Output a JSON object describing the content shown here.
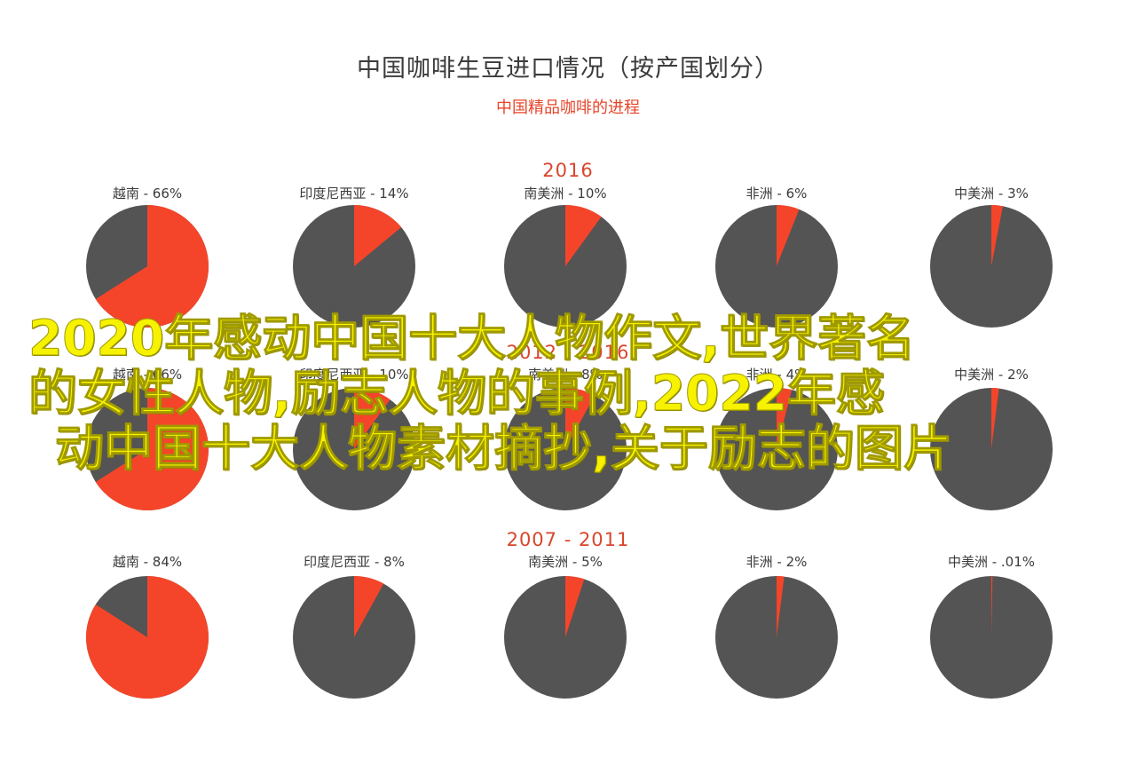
{
  "chart_data": {
    "type": "pie",
    "title": "中国咖啡生豆进口情况（按产国划分）",
    "subtitle": "中国精品咖啡的进程",
    "colors": {
      "highlight": "#f4452a",
      "rest": "#545454"
    },
    "groups": [
      {
        "period": "2016",
        "pies": [
          {
            "country": "越南",
            "label": "越南 - 66%",
            "value": 66
          },
          {
            "country": "印度尼西亚",
            "label": "印度尼西亚 - 14%",
            "value": 14
          },
          {
            "country": "南美洲",
            "label": "南美洲 - 10%",
            "value": 10
          },
          {
            "country": "非洲",
            "label": "非洲 - 6%",
            "value": 6
          },
          {
            "country": "中美洲",
            "label": "中美洲 - 3%",
            "value": 3
          }
        ]
      },
      {
        "period": "2012 - 2016",
        "pies": [
          {
            "country": "越南",
            "label": "越南 - 66%",
            "value": 66
          },
          {
            "country": "印度尼西亚",
            "label": "印度尼西亚 - 10%",
            "value": 10
          },
          {
            "country": "南美洲",
            "label": "南美洲 - 8%",
            "value": 8
          },
          {
            "country": "非洲",
            "label": "非洲 - 4%",
            "value": 4
          },
          {
            "country": "中美洲",
            "label": "中美洲 - 2%",
            "value": 2
          }
        ]
      },
      {
        "period": "2007 - 2011",
        "pies": [
          {
            "country": "越南",
            "label": "越南 - 84%",
            "value": 84
          },
          {
            "country": "印度尼西亚",
            "label": "印度尼西亚 - 8%",
            "value": 8
          },
          {
            "country": "南美洲",
            "label": "南美洲 - 5%",
            "value": 5
          },
          {
            "country": "非洲",
            "label": "非洲 - 2%",
            "value": 2
          },
          {
            "country": "中美洲",
            "label": "中美洲 - .01%",
            "value": 0.01
          }
        ]
      }
    ]
  },
  "overlay": {
    "line1": "2020年感动中国十大人物作文,世界著名",
    "line2": "的女性人物,励志人物的事例,2022年感",
    "line3": "动中国十大人物素材摘抄,关于励志的图片"
  }
}
